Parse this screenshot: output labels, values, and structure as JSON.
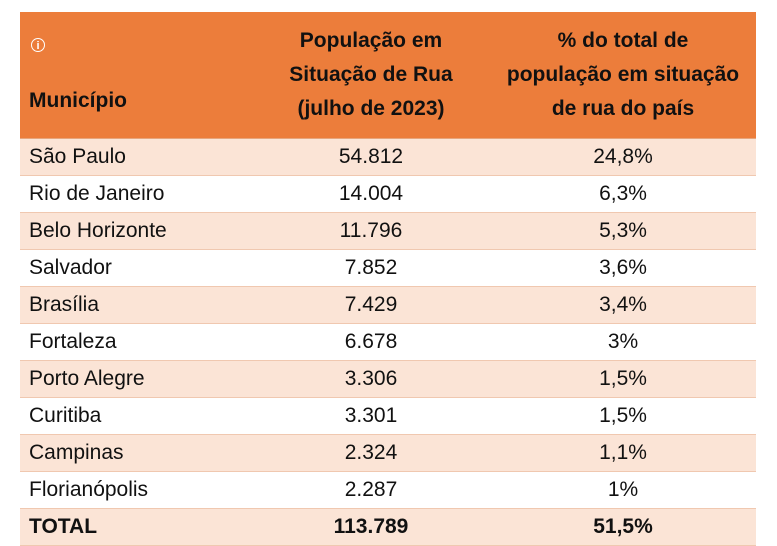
{
  "table": {
    "headers": {
      "municipio": "Município",
      "populacao": [
        "População em",
        "Situação de Rua",
        "(julho de 2023)"
      ],
      "percentual": [
        "% do total de",
        "população em situação",
        "de rua do país"
      ]
    },
    "rows": [
      {
        "municipio": "São Paulo",
        "populacao": "54.812",
        "percentual": "24,8%"
      },
      {
        "municipio": "Rio de Janeiro",
        "populacao": "14.004",
        "percentual": "6,3%"
      },
      {
        "municipio": "Belo Horizonte",
        "populacao": "11.796",
        "percentual": "5,3%"
      },
      {
        "municipio": "Salvador",
        "populacao": "7.852",
        "percentual": "3,6%"
      },
      {
        "municipio": "Brasília",
        "populacao": "7.429",
        "percentual": "3,4%"
      },
      {
        "municipio": "Fortaleza",
        "populacao": "6.678",
        "percentual": "3%"
      },
      {
        "municipio": "Porto Alegre",
        "populacao": "3.306",
        "percentual": "1,5%"
      },
      {
        "municipio": "Curitiba",
        "populacao": "3.301",
        "percentual": "1,5%"
      },
      {
        "municipio": "Campinas",
        "populacao": "2.324",
        "percentual": "1,1%"
      },
      {
        "municipio": "Florianópolis",
        "populacao": "2.287",
        "percentual": "1%"
      }
    ],
    "total": {
      "municipio": "TOTAL",
      "populacao": "113.789",
      "percentual": "51,5%"
    }
  },
  "colors": {
    "header_bg": "#ec7d3b",
    "row_shaded": "#fbe4d6",
    "row_plain": "#ffffff"
  },
  "icons": {
    "header_info": "info-icon"
  }
}
